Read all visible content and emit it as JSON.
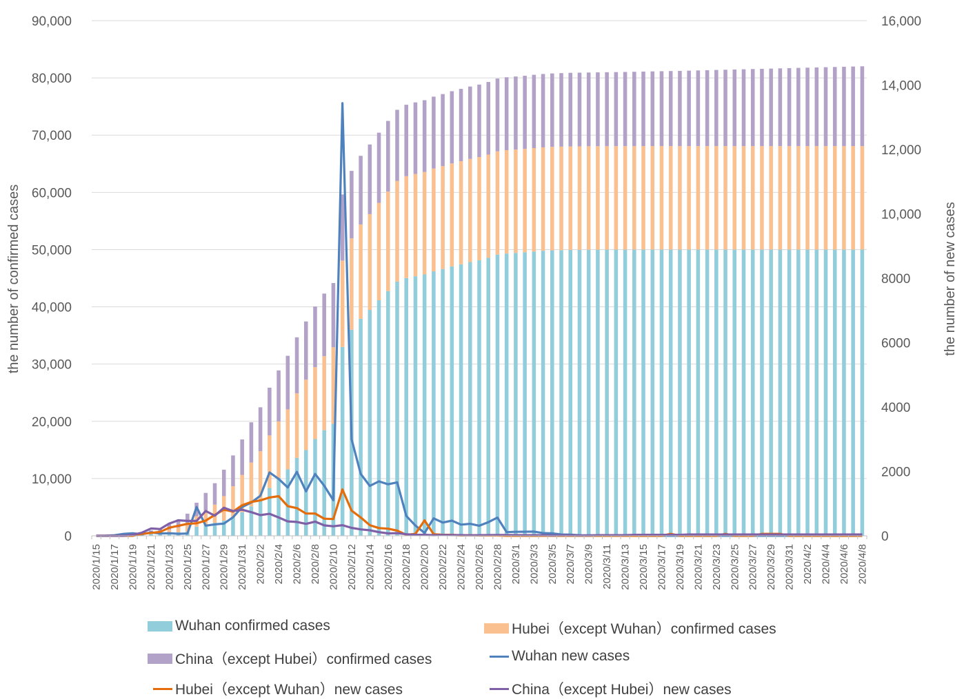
{
  "chart_data": {
    "type": "bar+line",
    "title": "",
    "ylabel_left": "the number of confirmed cases",
    "ylabel_right": "the number of new cases",
    "y_left_range": [
      0,
      90000
    ],
    "y_left_ticks": [
      "0",
      "10,000",
      "20,000",
      "30,000",
      "40,000",
      "50,000",
      "60,000",
      "70,000",
      "80,000",
      "90,000"
    ],
    "y_right_range": [
      0,
      16000
    ],
    "y_right_ticks": [
      "0",
      "2000",
      "4000",
      "6000",
      "8000",
      "10,000",
      "12,000",
      "14,000",
      "16,000"
    ],
    "x_tick_labels": [
      "2020/1/15",
      "2020/1/17",
      "2020/1/19",
      "2020/1/21",
      "2020/1/23",
      "2020/1/25",
      "2020/1/27",
      "2020/1/29",
      "2020/1/31",
      "2020/2/2",
      "2020/2/4",
      "2020/2/6",
      "2020/2/8",
      "2020/2/10",
      "2020/2/12",
      "2020/2/14",
      "2020/2/16",
      "2020/2/18",
      "2020/2/20",
      "2020/2/22",
      "2020/2/24",
      "2020/2/26",
      "2020/2/28",
      "2020/3/1",
      "2020/3/3",
      "2020/3/5",
      "2020/3/7",
      "2020/3/9",
      "2020/3/11",
      "2020/3/13",
      "2020/3/15",
      "2020/3/17",
      "2020/3/19",
      "2020/3/21",
      "2020/3/23",
      "2020/3/25",
      "2020/3/27",
      "2020/3/29",
      "2020/3/31",
      "2020/4/2",
      "2020/4/4",
      "2020/4/6",
      "2020/4/8"
    ],
    "legend_position": "bottom",
    "series": [
      {
        "name": "Wuhan confirmed cases",
        "kind": "stacked-bar",
        "axis": "left",
        "color": "#92CDDC",
        "values": [
          41,
          45,
          62,
          121,
          198,
          258,
          363,
          425,
          572,
          618,
          698,
          1590,
          1905,
          2261,
          2639,
          3215,
          4109,
          5142,
          6384,
          8351,
          10117,
          11618,
          13603,
          14982,
          16902,
          18454,
          19558,
          32994,
          35991,
          37914,
          39462,
          41152,
          42752,
          44412,
          45027,
          45346,
          45660,
          46201,
          46607,
          47071,
          47441,
          47824,
          48137,
          48557,
          49122,
          49315,
          49426,
          49540,
          49671,
          49797,
          49871,
          49912,
          49948,
          49965,
          49978,
          49986,
          49991,
          49995,
          49999,
          50003,
          50004,
          50005,
          50005,
          50006,
          50006,
          50006,
          50006,
          50006,
          50006,
          50006,
          50006,
          50006,
          50006,
          50006,
          50006,
          50006,
          50006,
          50007,
          50007,
          50007,
          50007,
          50007,
          50008,
          50008,
          50008
        ]
      },
      {
        "name": "Hubei（except Wuhan）confirmed cases",
        "kind": "stacked-bar",
        "axis": "left",
        "color": "#FAC090",
        "values": [
          0,
          0,
          0,
          0,
          72,
          186,
          216,
          344,
          480,
          810,
          1280,
          1833,
          2467,
          3180,
          4290,
          5440,
          6530,
          7660,
          8400,
          9180,
          9860,
          10470,
          11280,
          12300,
          12560,
          12940,
          13380,
          15090,
          15970,
          16480,
          16740,
          17000,
          17380,
          17580,
          17800,
          17860,
          17900,
          17960,
          17980,
          17990,
          18010,
          18020,
          18030,
          18040,
          18050,
          18060,
          18060,
          18060,
          18070,
          18070,
          18080,
          18080,
          18080,
          18080,
          18080,
          18080,
          18080,
          18080,
          18080,
          18080,
          18080,
          18080,
          18080,
          18080,
          18080,
          18080,
          18080,
          18080,
          18080,
          18080,
          18080,
          18080,
          18080,
          18080,
          18080,
          18080,
          18080,
          18080,
          18080,
          18080,
          18080,
          18080,
          18080,
          18080,
          18080
        ]
      },
      {
        "name": "China（except Hubei）confirmed cases",
        "kind": "stacked-bar",
        "axis": "left",
        "color": "#B3A2C7",
        "values": [
          0,
          0,
          0,
          0,
          30,
          127,
          354,
          563,
          944,
          1426,
          1887,
          2349,
          3120,
          3744,
          4617,
          5384,
          6192,
          7025,
          7666,
          8348,
          8916,
          9362,
          9792,
          10163,
          10603,
          10925,
          11220,
          11549,
          11795,
          11993,
          12165,
          12278,
          12352,
          12434,
          12484,
          12514,
          12543,
          12563,
          12589,
          12611,
          12633,
          12648,
          12668,
          12690,
          12715,
          12738,
          12760,
          12780,
          12800,
          12820,
          12830,
          12845,
          12860,
          12870,
          12880,
          12900,
          12920,
          12940,
          12960,
          12990,
          13020,
          13050,
          13080,
          13110,
          13140,
          13180,
          13220,
          13260,
          13300,
          13340,
          13380,
          13420,
          13460,
          13500,
          13540,
          13580,
          13620,
          13660,
          13700,
          13740,
          13780,
          13820,
          13860,
          13900,
          13940
        ]
      },
      {
        "name": "Wuhan new cases",
        "kind": "line",
        "axis": "right",
        "color": "#4F81BD",
        "values": [
          0,
          4,
          17,
          59,
          77,
          46,
          105,
          70,
          80,
          62,
          70,
          892,
          315,
          356,
          378,
          576,
          894,
          1033,
          1242,
          1967,
          1766,
          1501,
          1985,
          1379,
          1921,
          1552,
          1104,
          13436,
          2997,
          1923,
          1548,
          1690,
          1600,
          1660,
          615,
          319,
          88,
          542,
          411,
          471,
          346,
          372,
          313,
          423,
          565,
          114,
          125,
          126,
          131,
          83,
          74,
          41,
          36,
          17,
          13,
          8,
          5,
          4,
          4,
          2,
          1,
          0,
          0,
          0,
          0,
          0,
          0,
          0,
          1,
          0,
          0,
          0,
          0,
          0,
          0,
          0,
          0,
          1,
          0,
          0,
          0,
          1,
          0,
          0,
          0
        ]
      },
      {
        "name": "Hubei（except Wuhan）new cases",
        "kind": "line",
        "axis": "right",
        "color": "#E46C0A",
        "values": [
          0,
          0,
          0,
          0,
          0,
          60,
          90,
          120,
          250,
          310,
          370,
          390,
          470,
          650,
          810,
          750,
          950,
          1050,
          1100,
          1190,
          1230,
          920,
          860,
          690,
          690,
          530,
          520,
          1440,
          780,
          570,
          330,
          240,
          220,
          160,
          30,
          60,
          480,
          50,
          30,
          30,
          10,
          20,
          10,
          10,
          10,
          0,
          0,
          0,
          0,
          0,
          0,
          0,
          0,
          0,
          0,
          0,
          0,
          0,
          0,
          0,
          0,
          0,
          0,
          60,
          0,
          0,
          0,
          0,
          0,
          60,
          0,
          0,
          0,
          60,
          60,
          60,
          0,
          0,
          0,
          0,
          0,
          0,
          0,
          0,
          0
        ]
      },
      {
        "name": "China（except Hubei）new cases",
        "kind": "line",
        "axis": "right",
        "color": "#7F5FA6",
        "values": [
          0,
          0,
          0,
          0,
          30,
          97,
          227,
          209,
          381,
          482,
          461,
          462,
          771,
          624,
          873,
          767,
          808,
          733,
          641,
          682,
          568,
          446,
          430,
          371,
          440,
          322,
          295,
          330,
          246,
          198,
          172,
          113,
          74,
          82,
          50,
          30,
          29,
          20,
          26,
          22,
          22,
          15,
          20,
          22,
          25,
          23,
          22,
          20,
          20,
          20,
          10,
          15,
          15,
          10,
          10,
          20,
          20,
          20,
          20,
          30,
          30,
          30,
          30,
          30,
          30,
          40,
          40,
          40,
          40,
          40,
          40,
          40,
          40,
          40,
          40,
          40,
          40,
          40,
          40,
          40,
          40,
          40,
          40,
          40,
          40
        ]
      }
    ]
  }
}
